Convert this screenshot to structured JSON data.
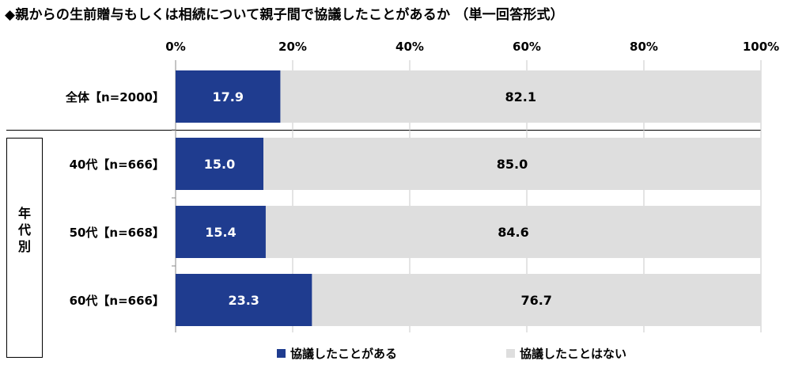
{
  "title": "◆親からの生前贈与もしくは相続について親子間で協議したことがあるか （単一回答形式）",
  "group_label": [
    "年",
    "代",
    "別"
  ],
  "colors": {
    "yes": "#1f3c8f",
    "no": "#dedede"
  },
  "chart_data": {
    "type": "bar",
    "orientation": "horizontal",
    "stacked": true,
    "categories": [
      "全体【n=2000】",
      "40代【n=666】",
      "50代【n=668】",
      "60代【n=666】"
    ],
    "series": [
      {
        "name": "協議したことがある",
        "values": [
          17.9,
          15.0,
          15.4,
          23.3
        ]
      },
      {
        "name": "協議したことはない",
        "values": [
          82.1,
          85.0,
          84.6,
          76.7
        ]
      }
    ],
    "xlim": [
      0,
      100
    ],
    "x_ticks": [
      "0%",
      "20%",
      "40%",
      "60%",
      "80%",
      "100%"
    ],
    "grid": true,
    "legend_position": "bottom"
  }
}
